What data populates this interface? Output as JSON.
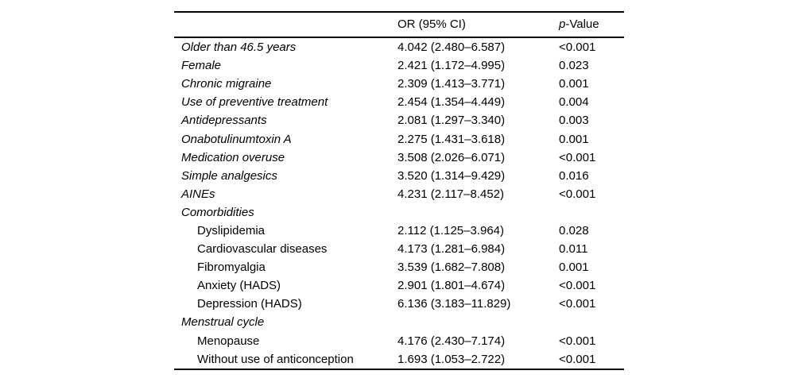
{
  "table": {
    "header": {
      "label_col": "",
      "or_ci": "OR (95% CI)",
      "p_prefix": "p",
      "p_suffix": "-Value"
    },
    "rows": [
      {
        "label": "Older than 46.5 years",
        "indent": 0,
        "or_ci": "4.042 (2.480–6.587)",
        "p_value": "<0.001"
      },
      {
        "label": "Female",
        "indent": 0,
        "or_ci": "2.421 (1.172–4.995)",
        "p_value": "0.023"
      },
      {
        "label": "Chronic migraine",
        "indent": 0,
        "or_ci": "2.309 (1.413–3.771)",
        "p_value": "0.001"
      },
      {
        "label": "Use of preventive treatment",
        "indent": 0,
        "or_ci": "2.454 (1.354–4.449)",
        "p_value": "0.004"
      },
      {
        "label": "Antidepressants",
        "indent": 0,
        "or_ci": "2.081 (1.297–3.340)",
        "p_value": "0.003"
      },
      {
        "label": "Onabotulinumtoxin A",
        "indent": 0,
        "or_ci": "2.275 (1.431–3.618)",
        "p_value": "0.001"
      },
      {
        "label": "Medication overuse",
        "indent": 0,
        "or_ci": "3.508 (2.026–6.071)",
        "p_value": "<0.001"
      },
      {
        "label": "Simple analgesics",
        "indent": 0,
        "or_ci": "3.520 (1.314–9.429)",
        "p_value": "0.016"
      },
      {
        "label": "AINEs",
        "indent": 0,
        "or_ci": "4.231 (2.117–8.452)",
        "p_value": "<0.001"
      },
      {
        "label": "Comorbidities",
        "indent": 0,
        "or_ci": "",
        "p_value": ""
      },
      {
        "label": "Dyslipidemia",
        "indent": 1,
        "or_ci": "2.112 (1.125–3.964)",
        "p_value": "0.028"
      },
      {
        "label": "Cardiovascular diseases",
        "indent": 1,
        "or_ci": "4.173 (1.281–6.984)",
        "p_value": "0.011"
      },
      {
        "label": "Fibromyalgia",
        "indent": 1,
        "or_ci": "3.539 (1.682–7.808)",
        "p_value": "0.001"
      },
      {
        "label": "Anxiety (HADS)",
        "indent": 1,
        "or_ci": "2.901 (1.801–4.674)",
        "p_value": "<0.001"
      },
      {
        "label": "Depression (HADS)",
        "indent": 1,
        "or_ci": "6.136 (3.183–11.829)",
        "p_value": "<0.001"
      },
      {
        "label": "Menstrual cycle",
        "indent": 0,
        "or_ci": "",
        "p_value": ""
      },
      {
        "label": "Menopause",
        "indent": 1,
        "or_ci": "4.176 (2.430–7.174)",
        "p_value": "<0.001"
      },
      {
        "label": "Without use of anticonception",
        "indent": 1,
        "or_ci": "1.693 (1.053–2.722)",
        "p_value": "<0.001"
      }
    ]
  }
}
